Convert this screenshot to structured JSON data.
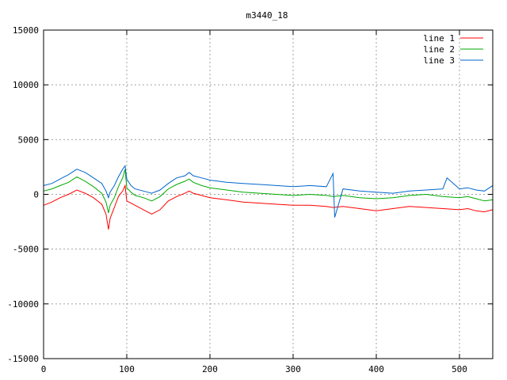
{
  "chart_data": {
    "type": "line",
    "title": "m3440_18",
    "xlabel": "",
    "ylabel": "",
    "xlim": [
      0,
      540
    ],
    "ylim": [
      -15000,
      15000
    ],
    "x_ticks": [
      0,
      100,
      200,
      300,
      400,
      500
    ],
    "y_ticks": [
      -15000,
      -10000,
      -5000,
      0,
      5000,
      10000,
      15000
    ],
    "grid": true,
    "legend_position": "top-right",
    "series": [
      {
        "name": "line 1",
        "color": "#ff0000",
        "x": [
          0,
          10,
          20,
          30,
          40,
          50,
          60,
          70,
          75,
          78,
          80,
          85,
          90,
          95,
          98,
          100,
          105,
          110,
          120,
          130,
          140,
          150,
          160,
          170,
          175,
          180,
          190,
          200,
          220,
          240,
          260,
          280,
          300,
          320,
          340,
          348,
          360,
          380,
          400,
          420,
          440,
          460,
          480,
          500,
          510,
          520,
          530,
          540
        ],
        "values": [
          -1000,
          -700,
          -300,
          0,
          400,
          100,
          -300,
          -900,
          -1800,
          -3200,
          -2200,
          -1200,
          -200,
          300,
          800,
          -600,
          -800,
          -1000,
          -1400,
          -1800,
          -1400,
          -600,
          -200,
          100,
          300,
          100,
          -100,
          -300,
          -500,
          -700,
          -800,
          -900,
          -1000,
          -1000,
          -1100,
          -1200,
          -1100,
          -1300,
          -1500,
          -1300,
          -1100,
          -1200,
          -1300,
          -1400,
          -1300,
          -1500,
          -1600,
          -1400
        ]
      },
      {
        "name": "line 2",
        "color": "#00aa00",
        "x": [
          0,
          10,
          20,
          30,
          40,
          50,
          60,
          70,
          75,
          78,
          80,
          85,
          90,
          95,
          98,
          100,
          105,
          110,
          120,
          130,
          140,
          150,
          160,
          170,
          175,
          180,
          190,
          200,
          220,
          240,
          260,
          280,
          300,
          320,
          340,
          348,
          360,
          380,
          400,
          420,
          440,
          460,
          480,
          500,
          510,
          520,
          530,
          540
        ],
        "values": [
          300,
          500,
          800,
          1100,
          1600,
          1200,
          700,
          100,
          -700,
          -1700,
          -1000,
          -300,
          700,
          1500,
          2300,
          600,
          200,
          -100,
          -300,
          -600,
          -200,
          500,
          900,
          1200,
          1400,
          1100,
          800,
          600,
          400,
          200,
          100,
          0,
          -100,
          0,
          -100,
          -200,
          -100,
          -300,
          -400,
          -300,
          -100,
          0,
          -200,
          -300,
          -200,
          -400,
          -600,
          -500
        ]
      },
      {
        "name": "line 3",
        "color": "#0066cc",
        "x": [
          0,
          10,
          20,
          30,
          40,
          50,
          60,
          70,
          75,
          78,
          80,
          85,
          90,
          95,
          98,
          100,
          105,
          110,
          120,
          130,
          140,
          150,
          160,
          170,
          175,
          180,
          190,
          200,
          220,
          240,
          260,
          280,
          300,
          320,
          340,
          348,
          350,
          360,
          380,
          400,
          420,
          440,
          460,
          480,
          485,
          500,
          510,
          520,
          530,
          540
        ],
        "values": [
          800,
          1000,
          1400,
          1800,
          2300,
          2000,
          1500,
          1000,
          300,
          -300,
          200,
          800,
          1600,
          2300,
          2600,
          1400,
          800,
          500,
          300,
          100,
          400,
          1000,
          1500,
          1700,
          2000,
          1700,
          1500,
          1300,
          1100,
          1000,
          900,
          800,
          700,
          800,
          700,
          1900,
          -2100,
          500,
          300,
          200,
          100,
          300,
          400,
          500,
          1500,
          500,
          600,
          400,
          300,
          800
        ]
      }
    ]
  }
}
